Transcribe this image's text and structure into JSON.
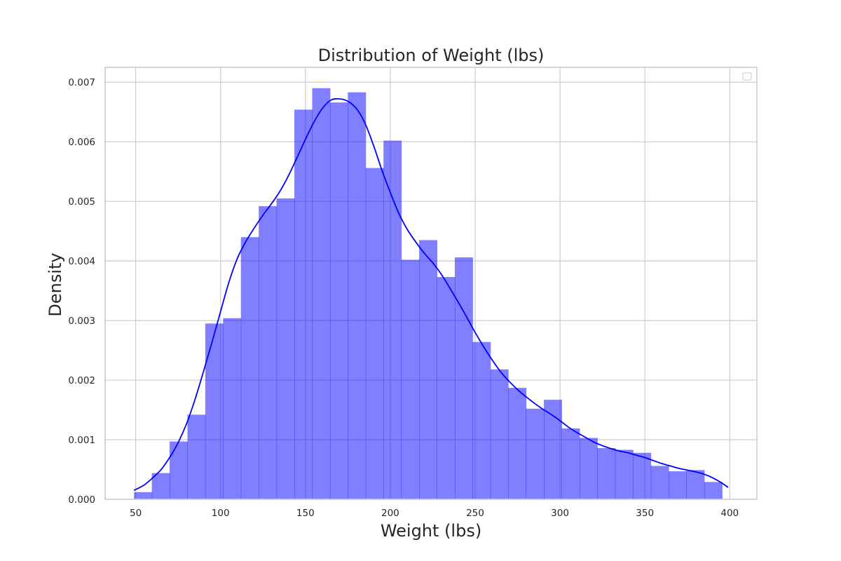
{
  "chart_data": {
    "type": "histogram",
    "title": "Distribution of Weight (lbs)",
    "xlabel": "Weight (lbs)",
    "ylabel": "Density",
    "xlim": [
      32,
      416
    ],
    "ylim": [
      0,
      0.00725
    ],
    "xticks": [
      50,
      100,
      150,
      200,
      250,
      300,
      350,
      400
    ],
    "yticks": [
      0.0,
      0.001,
      0.002,
      0.003,
      0.004,
      0.005,
      0.006,
      0.007
    ],
    "ytick_labels": [
      "0.000",
      "0.001",
      "0.002",
      "0.003",
      "0.004",
      "0.005",
      "0.006",
      "0.007"
    ],
    "grid": true,
    "legend": "upper right (empty)",
    "bar_color": "#0000ff",
    "bar_alpha": 0.5,
    "kde_color": "#0000ff",
    "bins": {
      "edges": [
        49,
        59.5,
        70,
        80.5,
        91,
        101.5,
        112,
        122.5,
        133,
        143.5,
        154,
        164.5,
        175,
        185.5,
        196,
        206.5,
        217,
        227.5,
        238,
        248.5,
        259,
        269.5,
        280,
        290.5,
        301,
        311.5,
        322,
        332.5,
        343,
        353.5,
        364,
        374.5,
        385,
        395.5
      ],
      "densities": [
        0.00012,
        0.00044,
        0.00097,
        0.00142,
        0.00295,
        0.00304,
        0.0044,
        0.00492,
        0.00505,
        0.00654,
        0.0069,
        0.00666,
        0.00683,
        0.00556,
        0.00602,
        0.00402,
        0.00435,
        0.00373,
        0.00406,
        0.00264,
        0.00218,
        0.00187,
        0.00152,
        0.00167,
        0.00119,
        0.00103,
        0.00086,
        0.00083,
        0.00078,
        0.00056,
        0.00047,
        0.00049,
        0.00029
      ]
    },
    "kde": {
      "x": [
        49,
        55,
        60,
        65,
        70,
        75,
        80,
        85,
        90,
        95,
        100,
        105,
        110,
        115,
        120,
        125,
        130,
        135,
        140,
        145,
        150,
        155,
        160,
        165,
        170,
        175,
        180,
        185,
        190,
        195,
        200,
        205,
        210,
        215,
        220,
        225,
        230,
        235,
        240,
        245,
        250,
        255,
        260,
        265,
        270,
        275,
        280,
        285,
        290,
        295,
        300,
        305,
        310,
        315,
        320,
        325,
        330,
        335,
        340,
        345,
        350,
        355,
        360,
        365,
        370,
        375,
        380,
        385,
        390,
        395,
        399
      ],
      "y": [
        0.00015,
        0.00024,
        0.00036,
        0.0005,
        0.0007,
        0.00095,
        0.00127,
        0.00168,
        0.00215,
        0.00264,
        0.00315,
        0.00365,
        0.00405,
        0.00433,
        0.00456,
        0.00477,
        0.00496,
        0.00517,
        0.00543,
        0.00573,
        0.00604,
        0.00633,
        0.00656,
        0.0067,
        0.00672,
        0.00668,
        0.00656,
        0.00632,
        0.00595,
        0.00553,
        0.00515,
        0.0048,
        0.00453,
        0.00432,
        0.00413,
        0.00397,
        0.00378,
        0.00355,
        0.00331,
        0.00306,
        0.0028,
        0.00256,
        0.00234,
        0.00214,
        0.00198,
        0.00184,
        0.00172,
        0.00161,
        0.00151,
        0.00142,
        0.00132,
        0.00121,
        0.00112,
        0.00104,
        0.00096,
        0.0009,
        0.00085,
        0.00081,
        0.00078,
        0.00074,
        0.0007,
        0.00065,
        0.0006,
        0.00056,
        0.00052,
        0.00049,
        0.00046,
        0.00042,
        0.00036,
        0.00028,
        0.0002
      ]
    }
  }
}
